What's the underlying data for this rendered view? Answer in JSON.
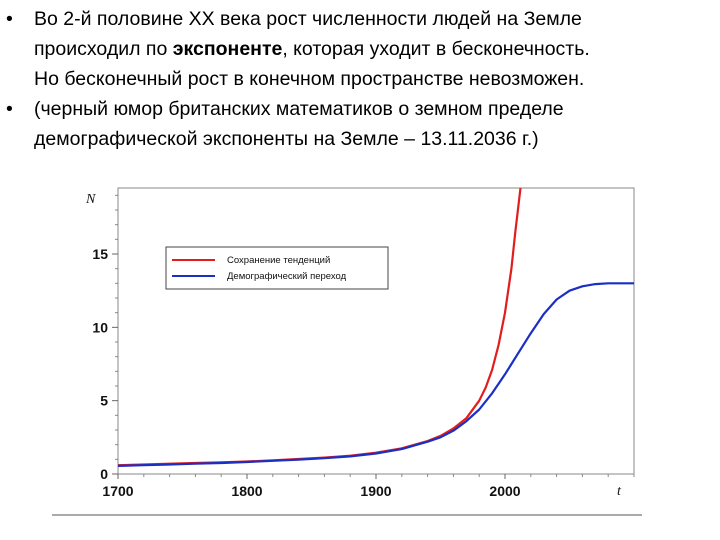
{
  "slide": {
    "bullets": [
      {
        "line1": "Во 2-й половине XX века рост численности людей на Земле",
        "line2_before": "происходил по ",
        "line2_bold": "экспоненте",
        "line2_after": ", которая уходит в бесконечность.",
        "line3": "Но бесконечный рост в конечном пространстве невозможен."
      },
      {
        "line1": "(черный юмор британских математиков о земном пределе",
        "line2": "демографической экспоненты на Земле – 13.11.2036 г.)"
      }
    ],
    "bullet_glyph": "•"
  },
  "chart_data": {
    "type": "line",
    "title": "",
    "xlabel": "t",
    "ylabel": "N",
    "xlim": [
      1700,
      2100
    ],
    "ylim": [
      0,
      19.5
    ],
    "xticks": [
      1700,
      1800,
      1900,
      2000
    ],
    "yticks": [
      0,
      5,
      10,
      15
    ],
    "grid": false,
    "legend_position": "top-left",
    "series": [
      {
        "name": "Сохранение тенденций",
        "color": "#e21d1d",
        "x": [
          1700,
          1720,
          1740,
          1760,
          1780,
          1800,
          1820,
          1840,
          1860,
          1880,
          1900,
          1920,
          1940,
          1950,
          1960,
          1970,
          1980,
          1985,
          1990,
          1995,
          2000,
          2005,
          2008,
          2010,
          2012
        ],
        "y": [
          0.6,
          0.65,
          0.7,
          0.75,
          0.8,
          0.85,
          0.93,
          1.02,
          1.12,
          1.25,
          1.45,
          1.75,
          2.25,
          2.6,
          3.1,
          3.8,
          5.0,
          5.9,
          7.1,
          8.8,
          11.0,
          14.0,
          16.5,
          18.0,
          19.5
        ]
      },
      {
        "name": "Демографический переход",
        "color": "#1a2fc4",
        "x": [
          1700,
          1720,
          1740,
          1760,
          1780,
          1800,
          1820,
          1840,
          1860,
          1880,
          1900,
          1920,
          1940,
          1950,
          1960,
          1970,
          1980,
          1990,
          2000,
          2010,
          2020,
          2030,
          2040,
          2050,
          2060,
          2070,
          2080,
          2090,
          2100
        ],
        "y": [
          0.55,
          0.6,
          0.65,
          0.7,
          0.75,
          0.82,
          0.9,
          0.98,
          1.08,
          1.2,
          1.4,
          1.7,
          2.2,
          2.5,
          2.95,
          3.6,
          4.4,
          5.5,
          6.8,
          8.2,
          9.6,
          10.9,
          11.9,
          12.5,
          12.8,
          12.95,
          13.0,
          13.0,
          13.0
        ]
      }
    ]
  }
}
